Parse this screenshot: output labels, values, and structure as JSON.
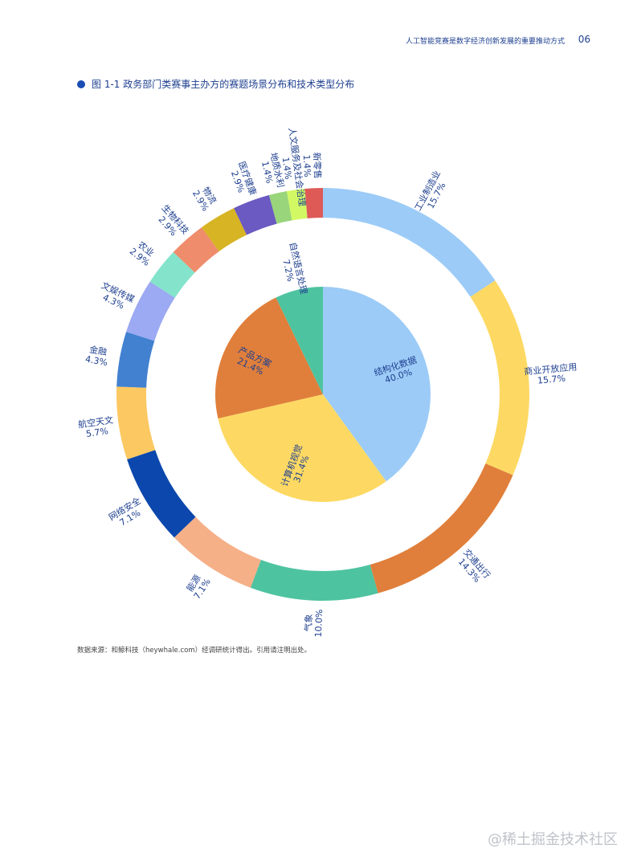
{
  "header": {
    "title": "人工智能竞赛是数字经济创新发展的重要推动方式",
    "page_number": "06"
  },
  "figure": {
    "caption": "图 1-1 政务部门类赛事主办方的赛题场景分布和技术类型分布"
  },
  "source_note": "数据来源：和鲸科技（heywhale.com）经调研统计得出。引用请注明出处。",
  "watermark": "@稀土掘金技术社区",
  "chart_data": [
    {
      "type": "pie",
      "ring": "outer",
      "series": [
        {
          "categories": [
            "工业制造业",
            "商业开放应用",
            "交通出行",
            "气象",
            "能源",
            "网络安全",
            "航空天文",
            "金融",
            "文娱传媒",
            "农业",
            "生物科技",
            "物流",
            "医疗健康",
            "地质水利",
            "人文服务及社会治理",
            "新零售"
          ],
          "values": [
            15.7,
            15.7,
            14.3,
            10.0,
            7.1,
            7.1,
            5.7,
            4.3,
            4.3,
            2.9,
            2.9,
            2.9,
            2.9,
            1.4,
            1.4,
            1.4
          ],
          "labels": [
            "15.7%",
            "15.7%",
            "14.3%",
            "10.0%",
            "7.1%",
            "7.1%",
            "5.7%",
            "4.3%",
            "4.3%",
            "2.9%",
            "2.9%",
            "2.9%",
            "2.9%",
            "1.4%",
            "1.4%",
            "1.4%"
          ],
          "colors": [
            "#9ccbf7",
            "#fdd963",
            "#e07f3b",
            "#4ec3a0",
            "#f5b088",
            "#0b47ad",
            "#fcc862",
            "#4181d0",
            "#9ca9f3",
            "#84e3cb",
            "#ef8c6c",
            "#d7b423",
            "#6a5ac2",
            "#99d57a",
            "#d2f964",
            "#dd5a57"
          ]
        }
      ]
    },
    {
      "type": "pie",
      "ring": "inner",
      "series": [
        {
          "categories": [
            "结构化数据",
            "计算机视觉",
            "产品方案",
            "自然语言处理"
          ],
          "values": [
            40.0,
            31.4,
            21.4,
            7.2
          ],
          "labels": [
            "40.0%",
            "31.4%",
            "21.4%",
            "7.2%"
          ],
          "colors": [
            "#9ccbf7",
            "#fdd963",
            "#e07f3b",
            "#4ec3a0"
          ]
        }
      ]
    }
  ]
}
